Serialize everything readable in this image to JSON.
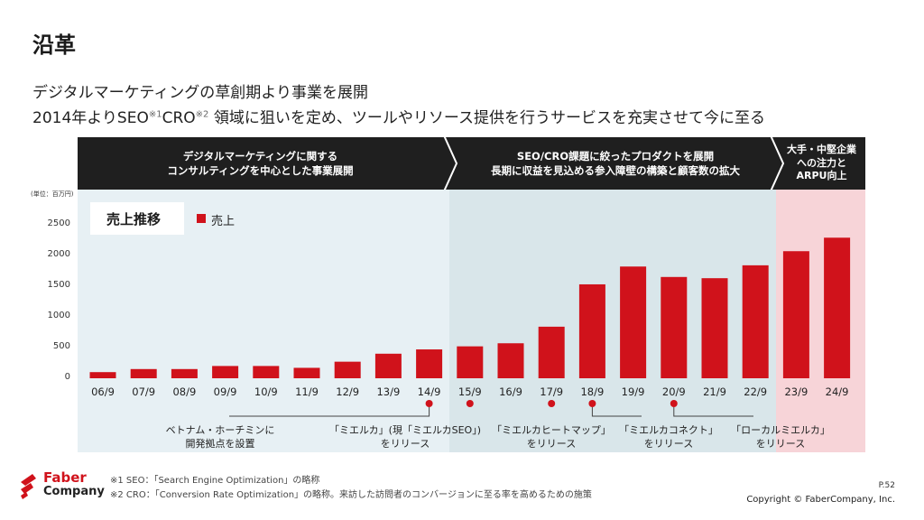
{
  "page_title": "沿革",
  "subtitle_line1": "デジタルマーケティングの草創期より事業を展開",
  "subtitle_line2": {
    "part1": "2014年よりSEO",
    "sup1": "※1",
    "part2": "CRO",
    "sup2": "※2",
    "part3": " 領域に狙いを定め、ツールやリソース提供を行うサービスを充実させて今に至る"
  },
  "phases": [
    {
      "line1": "デジタルマーケティングに関する",
      "line2": "コンサルティングを中心とした事業展開",
      "line3": ""
    },
    {
      "line1": "SEO/CRO課題に絞ったプロダクトを展開",
      "line2": "長期に収益を見込める参入障壁の構築と顧客数の拡大",
      "line3": ""
    },
    {
      "line1": "大手・中堅企業",
      "line2": "への注力と",
      "line3": "ARPU向上"
    }
  ],
  "unit_label": "(単位：百万円)",
  "legend": {
    "title": "売上推移",
    "series_label": "売上"
  },
  "colors": {
    "bar": "#d0121b",
    "phase_bar": "#1f1f1f",
    "accent": "#d0121b"
  },
  "chart_data": {
    "type": "bar",
    "title": "売上推移",
    "ylabel": "",
    "unit": "百万円",
    "ylim": [
      0,
      2500
    ],
    "yticks": [
      0,
      500,
      1000,
      1500,
      2000,
      2500
    ],
    "categories": [
      "06/9",
      "07/9",
      "08/9",
      "09/9",
      "10/9",
      "11/9",
      "12/9",
      "13/9",
      "14/9",
      "15/9",
      "16/9",
      "17/9",
      "18/9",
      "19/9",
      "20/9",
      "21/9",
      "22/9",
      "23/9",
      "24/9"
    ],
    "series": [
      {
        "name": "売上",
        "values": [
          100,
          150,
          150,
          200,
          200,
          170,
          270,
          400,
          470,
          520,
          570,
          840,
          1530,
          1820,
          1650,
          1630,
          1840,
          2070,
          2290
        ]
      }
    ],
    "grid": false,
    "legend_position": "top-left"
  },
  "annotations": [
    {
      "marker_at": "14/9",
      "line1": "ベトナム・ホーチミンに",
      "line2": "開発拠点を設置"
    },
    {
      "marker_at": "15/9",
      "line1": "「ミエルカ」(現「ミエルカSEO」)",
      "line2": "をリリース"
    },
    {
      "marker_at": "17/9",
      "line1": "「ミエルカヒートマップ」",
      "line2": "をリリース"
    },
    {
      "marker_at": "18/9",
      "line1": "「ミエルカコネクト」",
      "line2": "をリリース"
    },
    {
      "marker_at": "20/9",
      "line1": "「ローカルミエルカ」",
      "line2": "をリリース"
    }
  ],
  "footnotes": {
    "note1": "※1 SEO：「Search Engine Optimization」の略称",
    "note2": "※2 CRO：「Conversion Rate Optimization」の略称。来訪した訪問者のコンバージョンに至る率を高めるための施策"
  },
  "logo": {
    "line1": "Faber",
    "line2": "Company"
  },
  "page_number": "P.52",
  "copyright": "Copyright © FaberCompany, Inc."
}
